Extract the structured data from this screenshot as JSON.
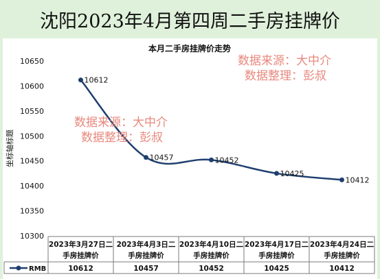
{
  "page": {
    "title": "沈阳2023年4月第四周二手房挂牌价"
  },
  "watermarks": [
    {
      "line1": "数据来源：大中介",
      "line2": "数据整理：彭叔"
    },
    {
      "line1": "数据来源：大中介",
      "line2": "数据整理：彭叔"
    }
  ],
  "colors": {
    "background": "#dff1db",
    "line": "#1f3f6e",
    "watermark": "#e8887d"
  },
  "chart_data": {
    "type": "line",
    "title": "本月二手房挂牌价走势",
    "ylabel": "坐标轴标题",
    "xlabel": "",
    "ylim": [
      10300,
      10650
    ],
    "yticks": [
      10300,
      10350,
      10400,
      10450,
      10500,
      10550,
      10600,
      10650
    ],
    "categories": [
      "2023年3月27日二手房挂牌价",
      "2023年4月3日二手房挂牌价",
      "2023年4月10日二手房挂牌价",
      "2023年4月17日二手房挂牌价",
      "2023年4月24日二手房挂牌价"
    ],
    "series": [
      {
        "name": "RMB",
        "values": [
          10612,
          10457,
          10452,
          10425,
          10412
        ]
      }
    ],
    "grid": false,
    "legend": "data-table"
  }
}
